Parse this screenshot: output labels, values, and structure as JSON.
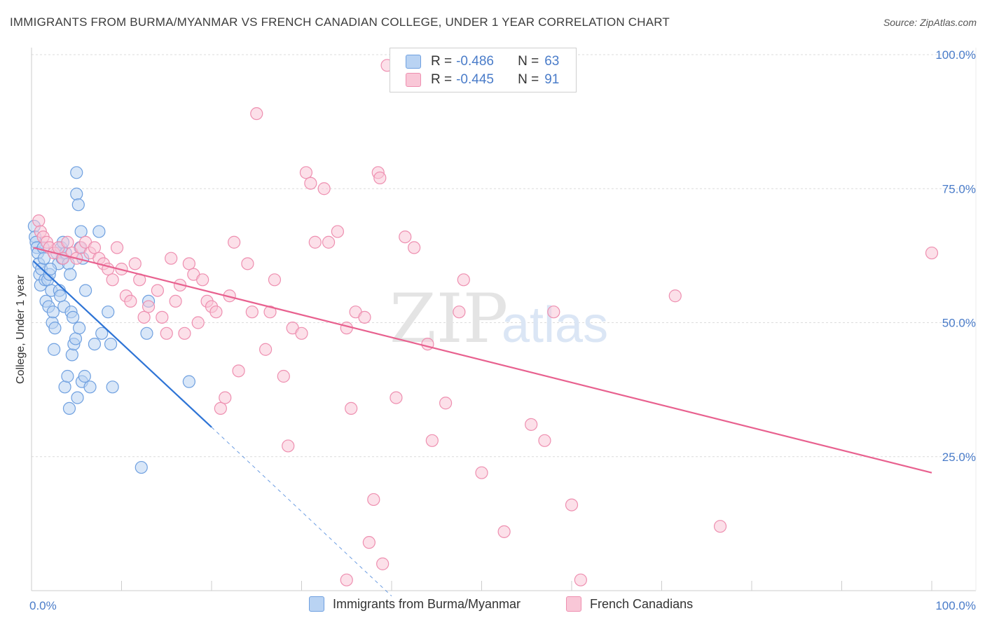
{
  "title": "IMMIGRANTS FROM BURMA/MYANMAR VS FRENCH CANADIAN COLLEGE, UNDER 1 YEAR CORRELATION CHART",
  "source": "Source: ZipAtlas.com",
  "watermark": {
    "zip": "ZIP",
    "atlas": "atlas"
  },
  "legend": {
    "rows": [
      {
        "r_label": "R =",
        "r_value": "-0.486",
        "n_label": "N =",
        "n_value": "63",
        "fill": "#b9d3f3",
        "stroke": "#6fa0e0"
      },
      {
        "r_label": "R =",
        "r_value": "-0.445",
        "n_label": "N =",
        "n_value": "91",
        "fill": "#f9c7d7",
        "stroke": "#ee8fb0"
      }
    ]
  },
  "bottom_legend": [
    {
      "label": "Immigrants from Burma/Myanmar",
      "fill": "#b9d3f3",
      "stroke": "#6fa0e0"
    },
    {
      "label": "French Canadians",
      "fill": "#f9c7d7",
      "stroke": "#ee8fb0"
    }
  ],
  "chart_data": {
    "type": "scatter",
    "title": "IMMIGRANTS FROM BURMA/MYANMAR VS FRENCH CANADIAN COLLEGE, UNDER 1 YEAR CORRELATION CHART",
    "xlabel": "",
    "ylabel": "College, Under 1 year",
    "xlim": [
      0,
      100
    ],
    "ylim": [
      0,
      100
    ],
    "x_tick_labels": [
      "0.0%",
      "100.0%"
    ],
    "y_tick_labels": [
      {
        "value": 25,
        "label": "25.0%"
      },
      {
        "value": 50,
        "label": "50.0%"
      },
      {
        "value": 75,
        "label": "75.0%"
      },
      {
        "value": 100,
        "label": "100.0%"
      }
    ],
    "grid": true,
    "series": [
      {
        "name": "Immigrants from Burma/Myanmar",
        "color": "#6fa0e0",
        "fill": "#b9d3f3",
        "trend_color": "#2e74d6",
        "trend": {
          "x0": 0.2,
          "y0": 61.5,
          "x1": 20,
          "y1": 30.5,
          "dash_x1": 40,
          "dash_y1": -1
        },
        "points": [
          [
            0.3,
            68
          ],
          [
            0.4,
            66
          ],
          [
            0.5,
            65
          ],
          [
            0.6,
            64
          ],
          [
            0.7,
            63
          ],
          [
            0.8,
            61
          ],
          [
            0.9,
            59
          ],
          [
            1.0,
            57
          ],
          [
            1.1,
            60
          ],
          [
            1.3,
            64
          ],
          [
            1.4,
            62
          ],
          [
            1.5,
            58
          ],
          [
            1.6,
            54
          ],
          [
            1.8,
            58
          ],
          [
            1.9,
            53
          ],
          [
            2.0,
            59
          ],
          [
            2.2,
            56
          ],
          [
            2.3,
            50
          ],
          [
            2.4,
            52
          ],
          [
            2.5,
            45
          ],
          [
            2.6,
            49
          ],
          [
            2.8,
            63
          ],
          [
            3.0,
            61
          ],
          [
            3.1,
            56
          ],
          [
            3.3,
            64
          ],
          [
            3.4,
            62
          ],
          [
            3.5,
            65
          ],
          [
            3.6,
            53
          ],
          [
            3.7,
            38
          ],
          [
            3.8,
            63
          ],
          [
            4.0,
            40
          ],
          [
            4.1,
            61
          ],
          [
            4.2,
            34
          ],
          [
            4.3,
            59
          ],
          [
            4.4,
            52
          ],
          [
            4.5,
            44
          ],
          [
            4.6,
            51
          ],
          [
            4.7,
            46
          ],
          [
            4.9,
            47
          ],
          [
            5.0,
            78
          ],
          [
            5.0,
            74
          ],
          [
            5.1,
            36
          ],
          [
            5.2,
            72
          ],
          [
            5.3,
            49
          ],
          [
            5.4,
            64
          ],
          [
            5.5,
            67
          ],
          [
            5.6,
            39
          ],
          [
            5.7,
            62
          ],
          [
            5.9,
            40
          ],
          [
            6.0,
            56
          ],
          [
            6.5,
            38
          ],
          [
            7.0,
            46
          ],
          [
            7.5,
            67
          ],
          [
            7.8,
            48
          ],
          [
            8.5,
            52
          ],
          [
            8.8,
            46
          ],
          [
            9.0,
            38
          ],
          [
            12.2,
            23
          ],
          [
            12.8,
            48
          ],
          [
            13.0,
            54
          ],
          [
            17.5,
            39
          ],
          [
            2.1,
            60
          ],
          [
            3.2,
            55
          ]
        ]
      },
      {
        "name": "French Canadians",
        "color": "#ee8fb0",
        "fill": "#f9c7d7",
        "trend_color": "#e8618f",
        "trend": {
          "x0": 0.2,
          "y0": 64,
          "x1": 100,
          "y1": 22
        },
        "points": [
          [
            0.8,
            69
          ],
          [
            1.0,
            67
          ],
          [
            1.3,
            66
          ],
          [
            1.7,
            65
          ],
          [
            2.0,
            64
          ],
          [
            2.5,
            63
          ],
          [
            3.0,
            64
          ],
          [
            3.5,
            62
          ],
          [
            4.0,
            65
          ],
          [
            4.5,
            63
          ],
          [
            5.0,
            62
          ],
          [
            5.5,
            64
          ],
          [
            6.0,
            65
          ],
          [
            6.5,
            63
          ],
          [
            7.0,
            64
          ],
          [
            7.5,
            62
          ],
          [
            8.0,
            61
          ],
          [
            8.5,
            60
          ],
          [
            9.0,
            58
          ],
          [
            9.5,
            64
          ],
          [
            10.0,
            60
          ],
          [
            10.5,
            55
          ],
          [
            11.0,
            54
          ],
          [
            11.5,
            61
          ],
          [
            12.0,
            58
          ],
          [
            12.5,
            51
          ],
          [
            13.0,
            53
          ],
          [
            14.0,
            56
          ],
          [
            14.5,
            51
          ],
          [
            15.0,
            48
          ],
          [
            15.5,
            62
          ],
          [
            16.0,
            54
          ],
          [
            16.5,
            57
          ],
          [
            17.0,
            48
          ],
          [
            17.5,
            61
          ],
          [
            18.0,
            59
          ],
          [
            18.5,
            50
          ],
          [
            19.0,
            58
          ],
          [
            19.5,
            54
          ],
          [
            20.0,
            53
          ],
          [
            20.5,
            52
          ],
          [
            21.0,
            34
          ],
          [
            21.5,
            36
          ],
          [
            22.0,
            55
          ],
          [
            22.5,
            65
          ],
          [
            23.0,
            41
          ],
          [
            24.0,
            61
          ],
          [
            24.5,
            52
          ],
          [
            25.0,
            89
          ],
          [
            26.0,
            45
          ],
          [
            26.5,
            52
          ],
          [
            27.0,
            58
          ],
          [
            28.0,
            40
          ],
          [
            28.5,
            27
          ],
          [
            29.0,
            49
          ],
          [
            30.0,
            48
          ],
          [
            30.5,
            78
          ],
          [
            31.0,
            76
          ],
          [
            31.5,
            65
          ],
          [
            32.5,
            75
          ],
          [
            33.0,
            65
          ],
          [
            34.0,
            67
          ],
          [
            35.0,
            49
          ],
          [
            35.5,
            34
          ],
          [
            36.0,
            52
          ],
          [
            37.0,
            51
          ],
          [
            37.5,
            9
          ],
          [
            38.0,
            17
          ],
          [
            38.5,
            78
          ],
          [
            38.7,
            77
          ],
          [
            39.0,
            5
          ],
          [
            39.5,
            98
          ],
          [
            40.5,
            36
          ],
          [
            41.5,
            66
          ],
          [
            42.5,
            64
          ],
          [
            44.0,
            46
          ],
          [
            44.5,
            28
          ],
          [
            46.0,
            35
          ],
          [
            47.5,
            52
          ],
          [
            48.0,
            58
          ],
          [
            50.0,
            22
          ],
          [
            52.5,
            11
          ],
          [
            55.5,
            31
          ],
          [
            57.0,
            28
          ],
          [
            58.0,
            52
          ],
          [
            60.0,
            16
          ],
          [
            61.0,
            2
          ],
          [
            71.5,
            55
          ],
          [
            76.5,
            12
          ],
          [
            100,
            63
          ],
          [
            35.0,
            2
          ]
        ]
      }
    ]
  }
}
